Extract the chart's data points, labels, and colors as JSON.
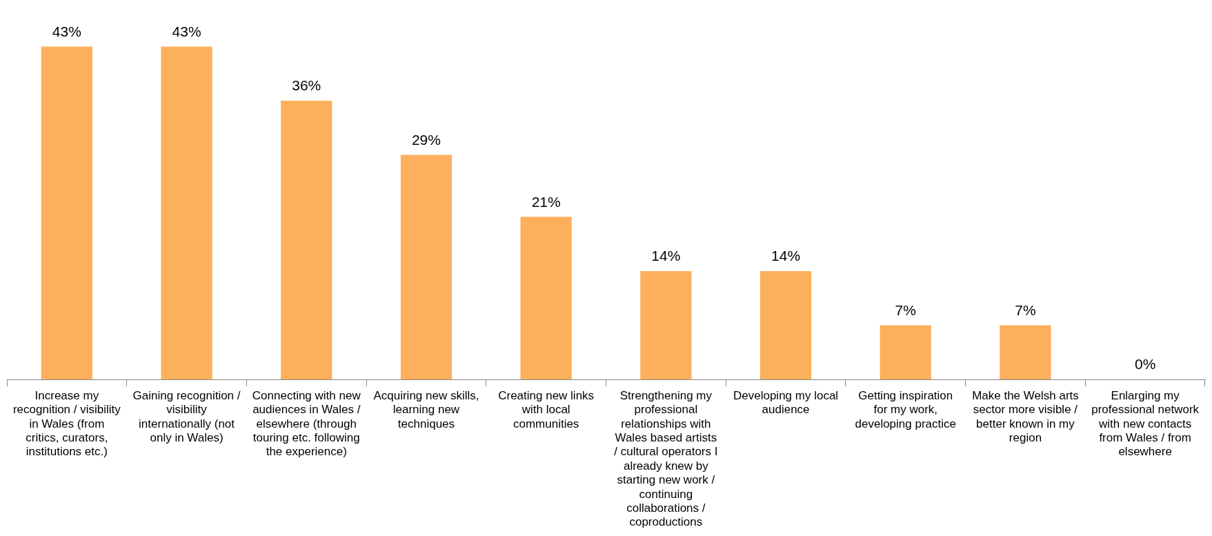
{
  "chart_data": {
    "type": "bar",
    "categories": [
      "Increase my recognition / visibility in Wales (from critics, curators, institutions etc.)",
      "Gaining recognition / visibility internationally (not only in Wales)",
      "Connecting with new audiences in Wales / elsewhere (through touring etc. following the experience)",
      "Acquiring new skills, learning new techniques",
      "Creating new links with local communities",
      "Strengthening my professional relationships with Wales based artists / cultural operators I already knew by starting new work / continuing collaborations / coproductions",
      "Developing my local audience",
      "Getting inspiration for my work, developing practice",
      "Make the Welsh arts sector more visible / better known in my region",
      "Enlarging my professional network with new contacts from Wales / from elsewhere"
    ],
    "values": [
      43,
      43,
      36,
      29,
      21,
      14,
      14,
      7,
      7,
      0
    ],
    "value_labels": [
      "43%",
      "43%",
      "36%",
      "29%",
      "21%",
      "14%",
      "14%",
      "7%",
      "7%",
      "0%"
    ],
    "color": "#fdb05c",
    "legend": false,
    "grid": false
  }
}
